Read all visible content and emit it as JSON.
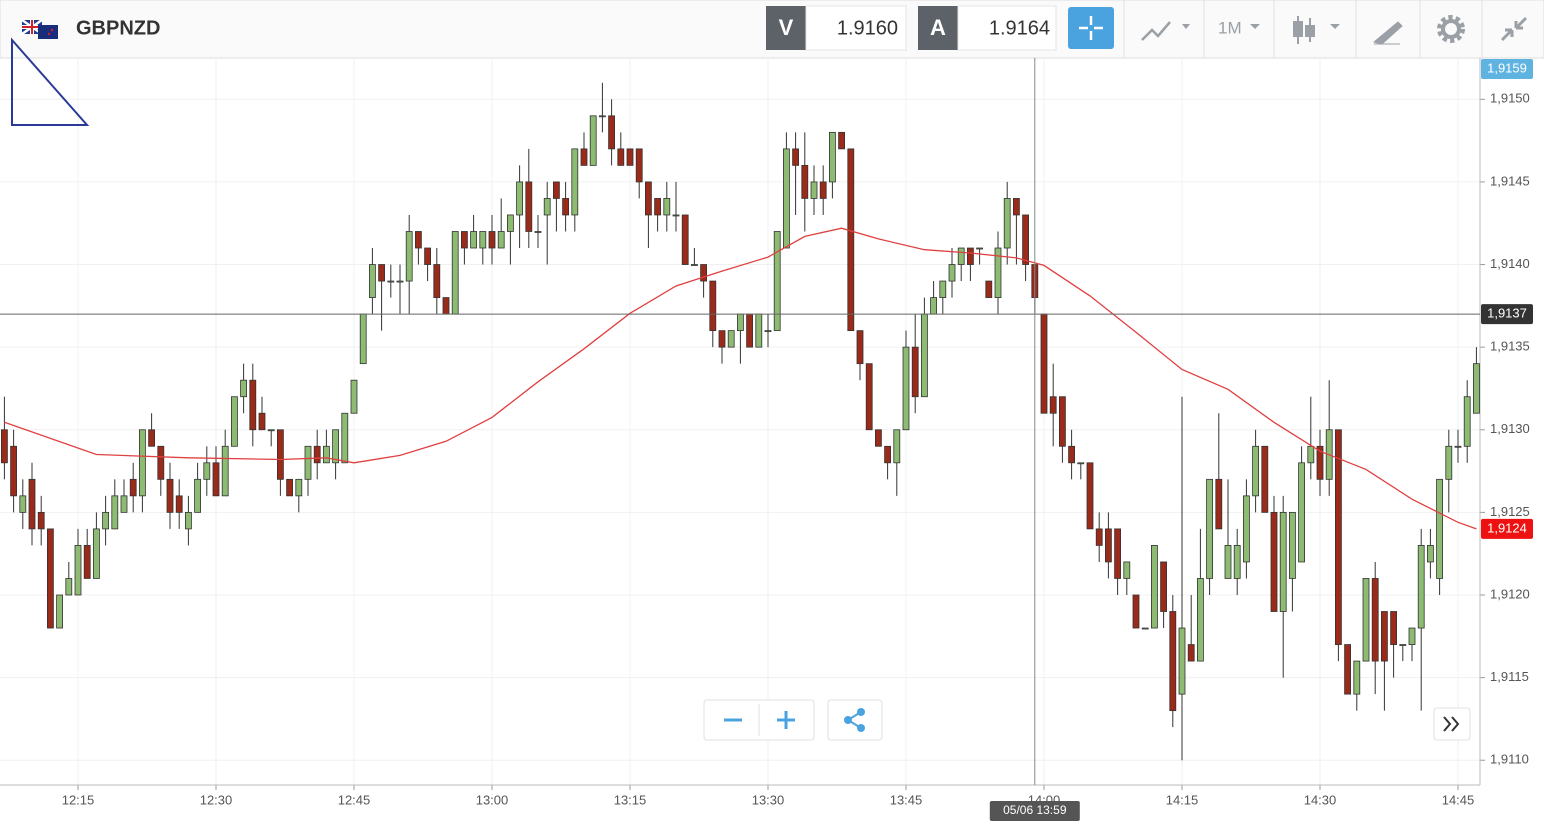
{
  "header": {
    "symbol": "GBPNZD",
    "bid_label": "V",
    "bid": "1.9160",
    "ask_label": "A",
    "ask": "1.9164",
    "timeframe": "1M",
    "top_price_tag": "1,9159"
  },
  "chart_data": {
    "type": "candlestick",
    "x": [
      "12:07",
      "12:08",
      "12:09",
      "12:10",
      "12:11",
      "12:12",
      "12:13",
      "12:14",
      "12:15",
      "12:16",
      "12:17",
      "12:18",
      "12:19",
      "12:20",
      "12:21",
      "12:22",
      "12:23",
      "12:24",
      "12:25",
      "12:26",
      "12:27",
      "12:28",
      "12:29",
      "12:30",
      "12:31",
      "12:32",
      "12:33",
      "12:34",
      "12:35",
      "12:36",
      "12:37",
      "12:38",
      "12:39",
      "12:40",
      "12:41",
      "12:42",
      "12:43",
      "12:44",
      "12:45",
      "12:46",
      "12:47",
      "12:48",
      "12:49",
      "12:50",
      "12:51",
      "12:52",
      "12:53",
      "12:54",
      "12:55",
      "12:56",
      "12:57",
      "12:58",
      "12:59",
      "13:00",
      "13:01",
      "13:02",
      "13:03",
      "13:04",
      "13:05",
      "13:06",
      "13:07",
      "13:08",
      "13:09",
      "13:10",
      "13:11",
      "13:12",
      "13:13",
      "13:14",
      "13:15",
      "13:16",
      "13:17",
      "13:18",
      "13:19",
      "13:20",
      "13:21",
      "13:22",
      "13:23",
      "13:24",
      "13:25",
      "13:26",
      "13:27",
      "13:28",
      "13:29",
      "13:30",
      "13:31",
      "13:32",
      "13:33",
      "13:34",
      "13:35",
      "13:36",
      "13:37",
      "13:38",
      "13:39",
      "13:40",
      "13:41",
      "13:42",
      "13:43",
      "13:44",
      "13:45",
      "13:46",
      "13:47",
      "13:48",
      "13:49",
      "13:50",
      "13:51",
      "13:52",
      "13:53",
      "13:54",
      "13:55",
      "13:56",
      "13:57",
      "13:58",
      "13:59",
      "14:00",
      "14:01",
      "14:02",
      "14:03",
      "14:04",
      "14:05",
      "14:06",
      "14:07",
      "14:08",
      "14:09",
      "14:10",
      "14:11",
      "14:12",
      "14:13",
      "14:14",
      "14:15",
      "14:16",
      "14:17",
      "14:18",
      "14:19",
      "14:20",
      "14:21",
      "14:22",
      "14:23",
      "14:24",
      "14:25",
      "14:26",
      "14:27",
      "14:28",
      "14:29",
      "14:30",
      "14:31",
      "14:32",
      "14:33",
      "14:34",
      "14:35",
      "14:36",
      "14:37",
      "14:38",
      "14:39",
      "14:40",
      "14:41",
      "14:42",
      "14:43",
      "14:44",
      "14:45",
      "14:46",
      "14:47"
    ],
    "open": [
      1.913,
      1.9129,
      1.9125,
      1.9127,
      1.9125,
      1.9124,
      1.9118,
      1.912,
      1.912,
      1.9123,
      1.9121,
      1.9124,
      1.9124,
      1.9125,
      1.9127,
      1.9126,
      1.913,
      1.9129,
      1.9127,
      1.9126,
      1.9124,
      1.9125,
      1.9127,
      1.9128,
      1.9126,
      1.9129,
      1.9132,
      1.9133,
      1.9131,
      1.913,
      1.913,
      1.9127,
      1.9126,
      1.9127,
      1.9129,
      1.9128,
      1.9128,
      1.9128,
      1.9131,
      1.9134,
      1.9138,
      1.914,
      1.9139,
      1.9139,
      1.9139,
      1.9142,
      1.9141,
      1.914,
      1.9138,
      1.9137,
      1.9142,
      1.9141,
      1.9141,
      1.9142,
      1.9141,
      1.9142,
      1.9143,
      1.9145,
      1.9142,
      1.9143,
      1.9145,
      1.9144,
      1.9143,
      1.9147,
      1.9146,
      1.9149,
      1.9149,
      1.9147,
      1.9147,
      1.9147,
      1.9145,
      1.9144,
      1.9143,
      1.9143,
      1.9143,
      1.914,
      1.914,
      1.9139,
      1.9136,
      1.9135,
      1.9136,
      1.9137,
      1.9135,
      1.9136,
      1.9136,
      1.9141,
      1.9147,
      1.9146,
      1.9144,
      1.9145,
      1.9145,
      1.9148,
      1.9147,
      1.9136,
      1.9134,
      1.913,
      1.9129,
      1.9128,
      1.913,
      1.9135,
      1.9132,
      1.9137,
      1.9138,
      1.9139,
      1.914,
      1.9141,
      1.9141,
      1.9139,
      1.9138,
      1.9141,
      1.9144,
      1.9143,
      1.914,
      1.9137,
      1.9132,
      1.9132,
      1.9129,
      1.9128,
      1.9128,
      1.9124,
      1.9124,
      1.9124,
      1.9121,
      1.912,
      1.9118,
      1.9118,
      1.9122,
      1.9119,
      1.9114,
      1.9117,
      1.9116,
      1.9121,
      1.9127,
      1.9121,
      1.9121,
      1.9122,
      1.9126,
      1.9129,
      1.9125,
      1.9119,
      1.9121,
      1.9122,
      1.9128,
      1.9129,
      1.9127,
      1.913,
      1.9117,
      1.9114,
      1.9116,
      1.9121,
      1.9119,
      1.9119,
      1.9117,
      1.9117,
      1.9118,
      1.9122,
      1.9121,
      1.9127,
      1.9129,
      1.9129,
      1.9131
    ],
    "high": [
      1.9132,
      1.913,
      1.9127,
      1.9128,
      1.9126,
      1.9124,
      1.912,
      1.9122,
      1.9124,
      1.9124,
      1.9125,
      1.9126,
      1.9127,
      1.9127,
      1.9128,
      1.913,
      1.9131,
      1.9129,
      1.9128,
      1.9127,
      1.9126,
      1.9128,
      1.9129,
      1.9129,
      1.913,
      1.9132,
      1.9134,
      1.9134,
      1.9132,
      1.913,
      1.913,
      1.9127,
      1.9127,
      1.9129,
      1.913,
      1.913,
      1.913,
      1.9131,
      1.9133,
      1.9137,
      1.9141,
      1.914,
      1.914,
      1.914,
      1.9143,
      1.9142,
      1.9141,
      1.9141,
      1.9138,
      1.9142,
      1.9142,
      1.9143,
      1.9142,
      1.9143,
      1.9144,
      1.9143,
      1.9146,
      1.9147,
      1.9143,
      1.9145,
      1.9145,
      1.9145,
      1.9147,
      1.9148,
      1.9149,
      1.9151,
      1.915,
      1.9148,
      1.9147,
      1.9147,
      1.9145,
      1.9144,
      1.9145,
      1.9145,
      1.9143,
      1.9141,
      1.914,
      1.9139,
      1.9136,
      1.9136,
      1.9137,
      1.9137,
      1.9137,
      1.9137,
      1.9142,
      1.9148,
      1.9148,
      1.9148,
      1.9146,
      1.9146,
      1.9148,
      1.9148,
      1.9147,
      1.9136,
      1.9134,
      1.913,
      1.9129,
      1.913,
      1.9136,
      1.9137,
      1.9138,
      1.9139,
      1.9139,
      1.9141,
      1.9141,
      1.9141,
      1.9141,
      1.9139,
      1.9142,
      1.9145,
      1.9144,
      1.9143,
      1.914,
      1.9137,
      1.9134,
      1.9132,
      1.913,
      1.9128,
      1.9128,
      1.9125,
      1.9125,
      1.9124,
      1.9122,
      1.912,
      1.9118,
      1.9123,
      1.9122,
      1.912,
      1.9132,
      1.912,
      1.9124,
      1.9127,
      1.9131,
      1.9127,
      1.9124,
      1.9127,
      1.913,
      1.9129,
      1.9126,
      1.9126,
      1.9125,
      1.9129,
      1.9132,
      1.913,
      1.9133,
      1.913,
      1.9117,
      1.9116,
      1.9121,
      1.9122,
      1.9119,
      1.9119,
      1.9117,
      1.9118,
      1.9124,
      1.9124,
      1.9127,
      1.913,
      1.913,
      1.9133,
      1.9135
    ],
    "low": [
      1.9127,
      1.9125,
      1.9124,
      1.9123,
      1.9123,
      1.9118,
      1.9118,
      1.912,
      1.912,
      1.9121,
      1.9121,
      1.9123,
      1.9124,
      1.9125,
      1.9125,
      1.9125,
      1.9129,
      1.9126,
      1.9124,
      1.9124,
      1.9123,
      1.9125,
      1.9126,
      1.9126,
      1.9126,
      1.9129,
      1.9131,
      1.9129,
      1.913,
      1.9129,
      1.9126,
      1.9126,
      1.9125,
      1.9126,
      1.9127,
      1.9128,
      1.9127,
      1.9128,
      1.9131,
      1.9134,
      1.9137,
      1.9136,
      1.9138,
      1.9137,
      1.9137,
      1.914,
      1.9139,
      1.9137,
      1.9137,
      1.9137,
      1.914,
      1.9141,
      1.914,
      1.914,
      1.9141,
      1.914,
      1.9141,
      1.9141,
      1.9141,
      1.914,
      1.9142,
      1.9142,
      1.9142,
      1.9146,
      1.9146,
      1.9148,
      1.9146,
      1.9146,
      1.9146,
      1.9144,
      1.9141,
      1.9142,
      1.9142,
      1.9142,
      1.914,
      1.914,
      1.9138,
      1.9135,
      1.9134,
      1.9135,
      1.9134,
      1.9135,
      1.9135,
      1.9135,
      1.9136,
      1.9141,
      1.9143,
      1.9142,
      1.9143,
      1.9143,
      1.9144,
      1.9147,
      1.9136,
      1.9133,
      1.913,
      1.9129,
      1.9127,
      1.9126,
      1.913,
      1.9131,
      1.9132,
      1.9137,
      1.9137,
      1.9138,
      1.9139,
      1.9139,
      1.914,
      1.9138,
      1.9137,
      1.914,
      1.914,
      1.9139,
      1.9137,
      1.9131,
      1.9129,
      1.9128,
      1.9127,
      1.9127,
      1.9124,
      1.9122,
      1.9121,
      1.912,
      1.912,
      1.9118,
      1.9118,
      1.9118,
      1.9118,
      1.9112,
      1.911,
      1.9116,
      1.9116,
      1.912,
      1.9124,
      1.9121,
      1.912,
      1.9121,
      1.9125,
      1.9125,
      1.9119,
      1.9115,
      1.9119,
      1.9122,
      1.9127,
      1.9126,
      1.9126,
      1.9116,
      1.9114,
      1.9113,
      1.9116,
      1.9114,
      1.9113,
      1.9115,
      1.9116,
      1.9116,
      1.9113,
      1.9121,
      1.912,
      1.9125,
      1.9128,
      1.9128,
      1.9131
    ],
    "close": [
      1.9128,
      1.9126,
      1.9126,
      1.9124,
      1.9124,
      1.9118,
      1.912,
      1.9121,
      1.9123,
      1.9121,
      1.9124,
      1.9125,
      1.9126,
      1.9126,
      1.9126,
      1.913,
      1.9129,
      1.9127,
      1.9125,
      1.9125,
      1.9125,
      1.9127,
      1.9128,
      1.9126,
      1.9129,
      1.9132,
      1.9133,
      1.913,
      1.913,
      1.913,
      1.9127,
      1.9126,
      1.9127,
      1.9129,
      1.9128,
      1.9129,
      1.913,
      1.9131,
      1.9133,
      1.9137,
      1.914,
      1.9139,
      1.9139,
      1.9139,
      1.9142,
      1.9141,
      1.914,
      1.9138,
      1.9137,
      1.9142,
      1.9141,
      1.9142,
      1.9142,
      1.9141,
      1.9142,
      1.9143,
      1.9145,
      1.9142,
      1.9142,
      1.9144,
      1.9144,
      1.9143,
      1.9147,
      1.9146,
      1.9149,
      1.9149,
      1.9147,
      1.9146,
      1.9146,
      1.9145,
      1.9143,
      1.9143,
      1.9144,
      1.9143,
      1.914,
      1.914,
      1.9139,
      1.9136,
      1.9135,
      1.9136,
      1.9137,
      1.9135,
      1.9137,
      1.9136,
      1.9142,
      1.9147,
      1.9146,
      1.9144,
      1.9145,
      1.9144,
      1.9148,
      1.9147,
      1.9136,
      1.9134,
      1.913,
      1.9129,
      1.9128,
      1.913,
      1.9135,
      1.9132,
      1.9137,
      1.9138,
      1.9139,
      1.914,
      1.9141,
      1.914,
      1.9141,
      1.9138,
      1.9141,
      1.9144,
      1.9143,
      1.914,
      1.9138,
      1.9131,
      1.9131,
      1.9129,
      1.9128,
      1.9128,
      1.9124,
      1.9123,
      1.9122,
      1.9121,
      1.9122,
      1.9118,
      1.9118,
      1.9123,
      1.9119,
      1.9113,
      1.9118,
      1.9116,
      1.9121,
      1.9127,
      1.9124,
      1.9123,
      1.9123,
      1.9126,
      1.9129,
      1.9125,
      1.9119,
      1.9125,
      1.9125,
      1.9128,
      1.9129,
      1.9127,
      1.913,
      1.9117,
      1.9114,
      1.9116,
      1.9121,
      1.9116,
      1.9116,
      1.9117,
      1.9117,
      1.9118,
      1.9123,
      1.9123,
      1.9127,
      1.9129,
      1.9129,
      1.9132,
      1.9134
    ],
    "up_color": "#8dbb72",
    "down_color": "#9a2a1a",
    "ma": {
      "color": "#e04040",
      "x": [
        "12:07",
        "12:17",
        "12:27",
        "12:37",
        "12:42",
        "12:45",
        "12:50",
        "12:55",
        "13:00",
        "13:05",
        "13:10",
        "13:15",
        "13:20",
        "13:25",
        "13:30",
        "13:34",
        "13:38",
        "13:42",
        "13:47",
        "13:52",
        "13:57",
        "14:00",
        "14:05",
        "14:10",
        "14:15",
        "14:20",
        "14:25",
        "14:30",
        "14:35",
        "14:40",
        "14:45",
        "14:47"
      ],
      "values": [
        1.913045,
        1.91285,
        1.91283,
        1.91282,
        1.91283,
        1.9128,
        1.912845,
        1.91293,
        1.913075,
        1.91329,
        1.91349,
        1.913705,
        1.91387,
        1.91396,
        1.914045,
        1.91417,
        1.91422,
        1.914155,
        1.91409,
        1.91407,
        1.91404,
        1.913995,
        1.91381,
        1.91359,
        1.913365,
        1.913245,
        1.913045,
        1.91287,
        1.91276,
        1.91258,
        1.91244,
        1.9124
      ],
      "last_label": "1,9124"
    },
    "ylim": [
      1.91085,
      1.91525
    ],
    "yticks": [
      {
        "value": 1.911,
        "label": "1,9110"
      },
      {
        "value": 1.9115,
        "label": "1,9115"
      },
      {
        "value": 1.912,
        "label": "1,9120"
      },
      {
        "value": 1.9125,
        "label": "1,9125"
      },
      {
        "value": 1.913,
        "label": "1,9130"
      },
      {
        "value": 1.9135,
        "label": "1,9135"
      },
      {
        "value": 1.914,
        "label": "1,9140"
      },
      {
        "value": 1.9145,
        "label": "1,9145"
      },
      {
        "value": 1.915,
        "label": "1,9150"
      }
    ],
    "xticks": [
      "12:15",
      "12:30",
      "12:45",
      "13:00",
      "13:15",
      "13:30",
      "13:45",
      "14:00",
      "14:15",
      "14:30",
      "14:45"
    ],
    "grid": true,
    "crosshair": {
      "price": {
        "value": 1.9137,
        "label": "1,9137"
      },
      "time_label": "05/06 13:59"
    }
  }
}
